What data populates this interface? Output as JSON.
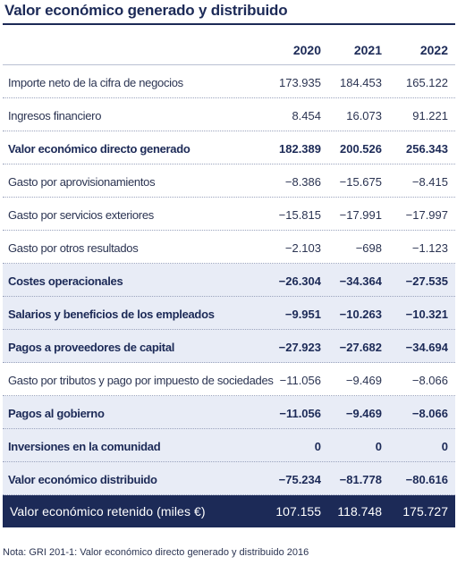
{
  "title": "Valor económico generado y distribuido",
  "columns": [
    "2020",
    "2021",
    "2022"
  ],
  "rows": [
    {
      "label": "Importe neto de la cifra de negocios",
      "values": [
        "173.935",
        "184.453",
        "165.122"
      ],
      "bold": false,
      "band": false
    },
    {
      "label": "Ingresos financiero",
      "values": [
        "8.454",
        "16.073",
        "91.221"
      ],
      "bold": false,
      "band": false
    },
    {
      "label": "Valor económico directo generado",
      "values": [
        "182.389",
        "200.526",
        "256.343"
      ],
      "bold": true,
      "band": false
    },
    {
      "label": "Gasto por aprovisionamientos",
      "values": [
        "−8.386",
        "−15.675",
        "−8.415"
      ],
      "bold": false,
      "band": false
    },
    {
      "label": "Gasto por servicios exteriores",
      "values": [
        "−15.815",
        "−17.991",
        "−17.997"
      ],
      "bold": false,
      "band": false
    },
    {
      "label": "Gasto por otros resultados",
      "values": [
        "−2.103",
        "−698",
        "−1.123"
      ],
      "bold": false,
      "band": false
    },
    {
      "label": "Costes operacionales",
      "values": [
        "−26.304",
        "−34.364",
        "−27.535"
      ],
      "bold": true,
      "band": true
    },
    {
      "label": "Salarios y beneficios de los empleados",
      "values": [
        "−9.951",
        "−10.263",
        "−10.321"
      ],
      "bold": true,
      "band": true
    },
    {
      "label": "Pagos a proveedores de capital",
      "values": [
        "−27.923",
        "−27.682",
        "−34.694"
      ],
      "bold": true,
      "band": true
    },
    {
      "label": "Gasto por tributos y pago por impuesto de sociedades",
      "values": [
        "−11.056",
        "−9.469",
        "−8.066"
      ],
      "bold": false,
      "band": false
    },
    {
      "label": "Pagos al gobierno",
      "values": [
        "−11.056",
        "−9.469",
        "−8.066"
      ],
      "bold": true,
      "band": true
    },
    {
      "label": "Inversiones en la comunidad",
      "values": [
        "0",
        "0",
        "0"
      ],
      "bold": true,
      "band": true
    },
    {
      "label": "Valor económico distribuido",
      "values": [
        "−75.234",
        "−81.778",
        "−80.616"
      ],
      "bold": true,
      "band": true
    }
  ],
  "total": {
    "label": "Valor económico retenido (miles €)",
    "values": [
      "107.155",
      "118.748",
      "175.727"
    ]
  },
  "note": "Nota: GRI 201-1: Valor económico directo generado y distribuido 2016"
}
